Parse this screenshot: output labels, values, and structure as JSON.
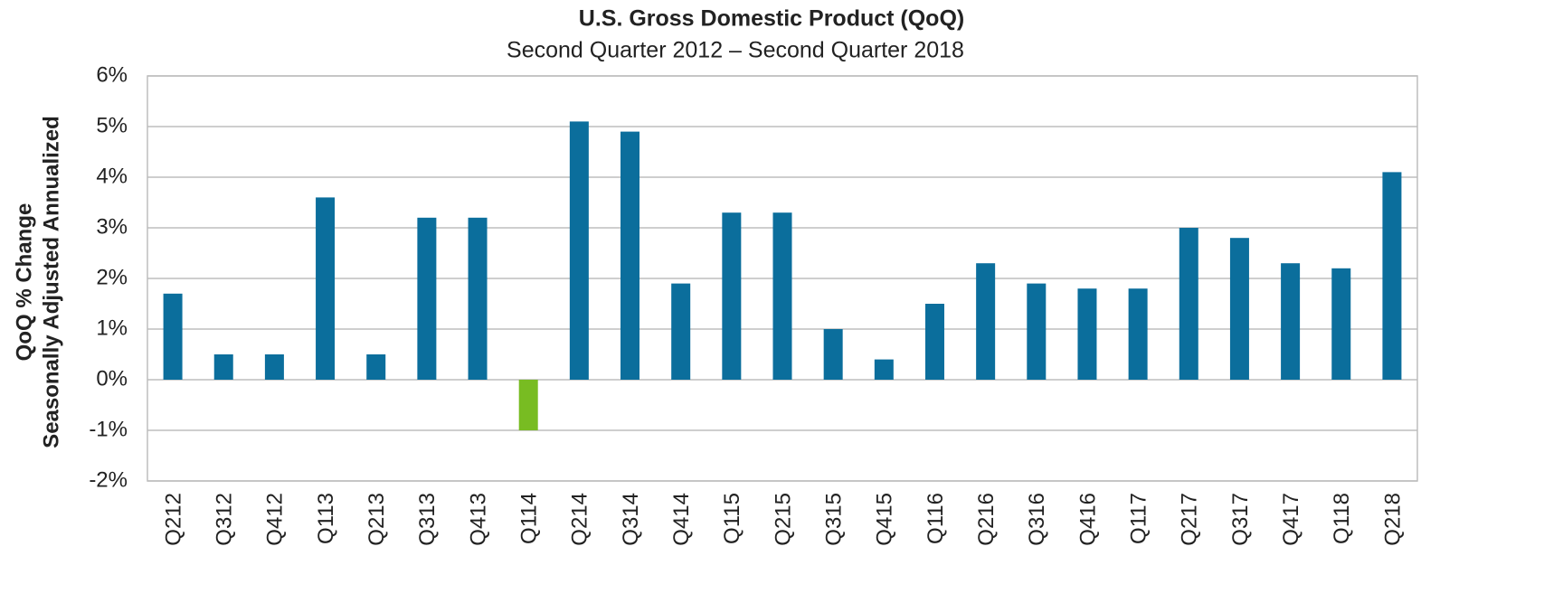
{
  "chart_data": {
    "type": "bar",
    "title": "U.S. Gross Domestic Product (QoQ)",
    "subtitle": "Second Quarter 2012 – Second Quarter 2018",
    "ylabel": [
      "QoQ % Change",
      "Seasonally Adjusted Annualized"
    ],
    "categories": [
      "Q212",
      "Q312",
      "Q412",
      "Q113",
      "Q213",
      "Q313",
      "Q413",
      "Q114",
      "Q214",
      "Q314",
      "Q414",
      "Q115",
      "Q215",
      "Q315",
      "Q415",
      "Q116",
      "Q216",
      "Q316",
      "Q416",
      "Q117",
      "Q217",
      "Q317",
      "Q417",
      "Q118",
      "Q218"
    ],
    "values": [
      1.7,
      0.5,
      0.5,
      3.6,
      0.5,
      3.2,
      3.2,
      -1.0,
      5.1,
      4.9,
      1.9,
      3.3,
      3.3,
      1.0,
      0.4,
      1.5,
      2.3,
      1.9,
      1.8,
      1.8,
      3.0,
      2.8,
      2.3,
      2.2,
      4.1
    ],
    "color": "#0b6e9c",
    "negative_color": "#78bc22",
    "ylim": [
      -2,
      6
    ],
    "yticks": [
      {
        "value": -2,
        "label": "-2%"
      },
      {
        "value": -1,
        "label": "-1%"
      },
      {
        "value": 0,
        "label": "0%"
      },
      {
        "value": 1,
        "label": "1%"
      },
      {
        "value": 2,
        "label": "2%"
      },
      {
        "value": 3,
        "label": "3%"
      },
      {
        "value": 4,
        "label": "4%"
      },
      {
        "value": 5,
        "label": "5%"
      },
      {
        "value": 6,
        "label": "6%"
      }
    ],
    "grid": true
  }
}
